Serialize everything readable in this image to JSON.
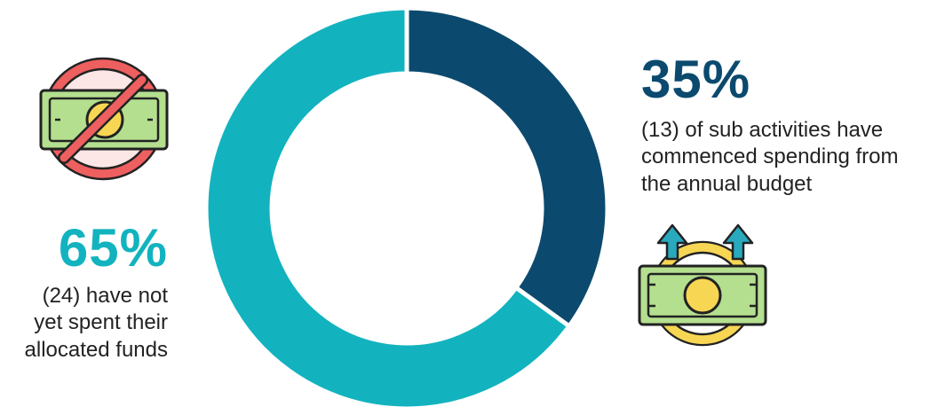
{
  "chart_data": {
    "type": "pie",
    "donut": true,
    "series": [
      {
        "name": "commenced spending",
        "value": 35,
        "count": 13,
        "percent_label": "35%",
        "description": "(13) of sub activities have commenced spending from the annual budget",
        "description_lines": [
          "(13) of sub activities have",
          "commenced spending from",
          "the annual budget"
        ],
        "color": "#0b4a6e"
      },
      {
        "name": "not yet spent",
        "value": 65,
        "count": 24,
        "percent_label": "65%",
        "description": "(24) have not yet spent their allocated funds",
        "description_lines": [
          "(24) have not",
          "yet spent their",
          "allocated funds"
        ],
        "color": "#12b3bf"
      }
    ]
  },
  "icons": {
    "left": "no-money-icon",
    "right": "money-growth-icon"
  },
  "colors": {
    "teal": "#12b3bf",
    "navy": "#0b4a6e",
    "money_green": "#b4df8f",
    "coin_yellow": "#f7d654",
    "prohibition_red": "#ee5f5f",
    "arrow_teal": "#29a9bd"
  }
}
